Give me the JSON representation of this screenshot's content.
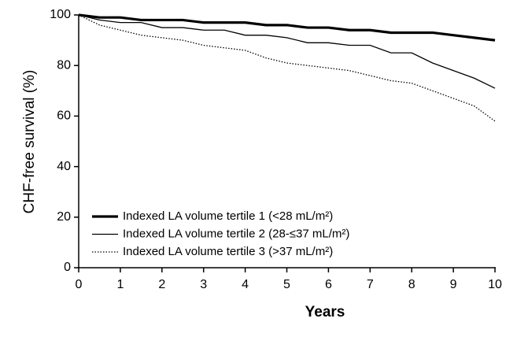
{
  "chart_data": {
    "type": "line",
    "x_label": "Years",
    "y_label": "CHF-free survival (%)",
    "x": [
      0,
      0.5,
      1,
      1.5,
      2,
      2.5,
      3,
      3.5,
      4,
      4.5,
      5,
      5.5,
      6,
      6.5,
      7,
      7.5,
      8,
      8.5,
      9,
      9.5,
      10
    ],
    "series": [
      {
        "name": "Indexed LA volume tertile 1 (<28 mL/m²)",
        "color": "#000000",
        "width": 3.2,
        "dash": "none",
        "values": [
          100,
          99,
          99,
          98,
          98,
          98,
          97,
          97,
          97,
          96,
          96,
          95,
          95,
          94,
          94,
          93,
          93,
          93,
          92,
          91,
          90
        ]
      },
      {
        "name": "Indexed LA volume tertile 2 (28-≤37 mL/m²)",
        "color": "#000000",
        "width": 1.3,
        "dash": "none",
        "values": [
          100,
          98,
          97,
          97,
          95,
          95,
          94,
          94,
          92,
          92,
          91,
          89,
          89,
          88,
          88,
          85,
          85,
          81,
          78,
          75,
          71
        ]
      },
      {
        "name": "Indexed LA volume tertile 3 (>37 mL/m²)",
        "color": "#000000",
        "width": 1.3,
        "dash": "1.5 2",
        "values": [
          100,
          96,
          94,
          92,
          91,
          90,
          88,
          87,
          86,
          83,
          81,
          80,
          79,
          78,
          76,
          74,
          73,
          70,
          67,
          64,
          58
        ]
      }
    ],
    "xlim": [
      0,
      10
    ],
    "xticks": [
      0,
      1,
      2,
      3,
      4,
      5,
      6,
      7,
      8,
      9,
      10
    ],
    "ylim": [
      0,
      100
    ],
    "yticks": [
      0,
      20,
      40,
      60,
      80,
      100
    ],
    "grid": false,
    "legend": "lower left"
  }
}
